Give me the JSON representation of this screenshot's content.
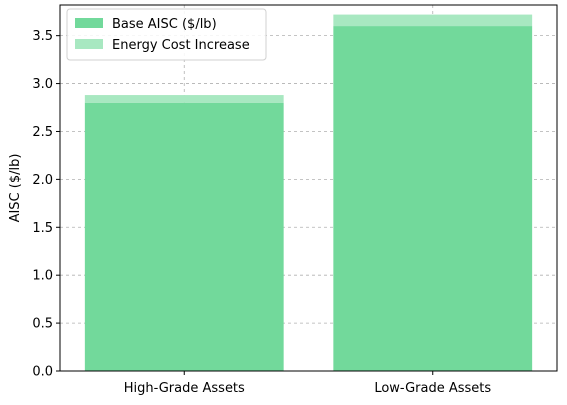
{
  "chart_data": {
    "type": "bar",
    "stacked": true,
    "categories": [
      "High-Grade Assets",
      "Low-Grade Assets"
    ],
    "series": [
      {
        "name": "Base AISC ($/lb)",
        "values": [
          2.8,
          3.6
        ],
        "color": "#72d99b"
      },
      {
        "name": "Energy Cost Increase",
        "values": [
          0.08,
          0.12
        ],
        "color": "#a8e8c1"
      }
    ],
    "xlabel": "",
    "ylabel": "AISC ($/lb)",
    "ylim": [
      0,
      3.82
    ],
    "yticks": [
      0.0,
      0.5,
      1.0,
      1.5,
      2.0,
      2.5,
      3.0,
      3.5
    ],
    "ytick_labels": [
      "0.0",
      "0.5",
      "1.0",
      "1.5",
      "2.0",
      "2.5",
      "3.0",
      "3.5"
    ],
    "grid": true,
    "legend_position": "top-left"
  }
}
